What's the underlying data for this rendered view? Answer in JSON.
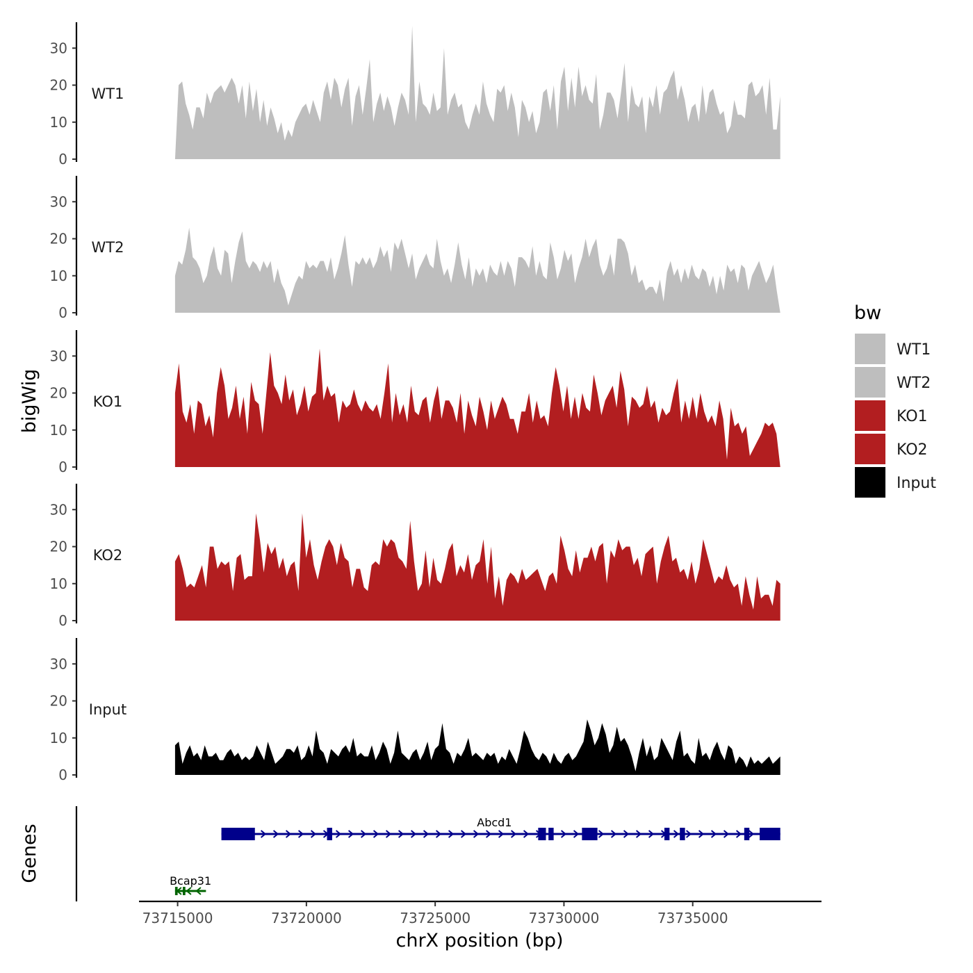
{
  "chart_data": {
    "type": "area",
    "title": "",
    "ylabel": "bigWig",
    "genes_label": "Genes",
    "xlabel": "chrX position (bp)",
    "xlim": [
      73713500,
      73740000
    ],
    "data_range": [
      73714900,
      73738400
    ],
    "ylim": [
      0,
      37
    ],
    "yticks": [
      0,
      10,
      20,
      30
    ],
    "xticks": [
      73715000,
      73720000,
      73725000,
      73730000,
      73735000
    ],
    "xtick_labels": [
      "73715000",
      "73720000",
      "73725000",
      "73730000",
      "73735000"
    ],
    "legend": {
      "title": "bw",
      "placement": "right",
      "entries": [
        {
          "label": "WT1",
          "color": "#bebebe"
        },
        {
          "label": "WT2",
          "color": "#bebebe"
        },
        {
          "label": "KO1",
          "color": "#b21e20"
        },
        {
          "label": "KO2",
          "color": "#b21e20"
        },
        {
          "label": "Input",
          "color": "#000000"
        }
      ]
    },
    "series": [
      {
        "name": "WT1",
        "color": "#bebebe",
        "values": [
          0,
          20,
          21,
          15,
          12,
          8,
          14,
          14,
          11,
          18,
          15,
          18,
          19,
          20,
          18,
          20,
          22,
          20,
          15,
          20,
          11,
          21,
          13,
          19,
          10,
          16,
          9,
          14,
          11,
          7,
          10,
          5,
          8,
          6,
          10,
          12,
          14,
          15,
          12,
          16,
          13,
          10,
          18,
          21,
          16,
          22,
          20,
          14,
          19,
          22,
          9,
          17,
          20,
          12,
          19,
          27,
          10,
          15,
          18,
          13,
          17,
          14,
          9,
          14,
          18,
          16,
          12,
          36,
          10,
          21,
          15,
          14,
          12,
          18,
          13,
          14,
          30,
          12,
          16,
          18,
          14,
          15,
          10,
          8,
          12,
          15,
          12,
          21,
          15,
          12,
          10,
          19,
          18,
          20,
          13,
          18,
          14,
          6,
          16,
          14,
          10,
          13,
          7,
          10,
          18,
          19,
          13,
          20,
          8,
          21,
          25,
          13,
          22,
          14,
          25,
          17,
          20,
          16,
          15,
          23,
          8,
          12,
          18,
          18,
          16,
          11,
          18,
          26,
          10,
          20,
          15,
          14,
          17,
          7,
          17,
          14,
          20,
          12,
          18,
          19,
          22,
          24,
          16,
          20,
          16,
          10,
          14,
          15,
          10,
          20,
          12,
          18,
          19,
          15,
          12,
          13,
          7,
          9,
          16,
          12,
          12,
          11,
          20,
          21,
          17,
          18,
          20,
          12,
          22,
          8,
          8,
          17
        ]
      },
      {
        "name": "WT2",
        "color": "#bebebe",
        "values": [
          10,
          14,
          13,
          17,
          23,
          15,
          14,
          12,
          8,
          10,
          15,
          18,
          12,
          10,
          17,
          16,
          8,
          14,
          19,
          22,
          14,
          12,
          14,
          13,
          11,
          14,
          12,
          14,
          8,
          12,
          8,
          6,
          2,
          5,
          8,
          10,
          9,
          14,
          12,
          13,
          12,
          14,
          14,
          11,
          15,
          9,
          12,
          16,
          21,
          13,
          7,
          14,
          13,
          15,
          13,
          15,
          12,
          14,
          18,
          15,
          17,
          11,
          19,
          17,
          20,
          16,
          12,
          16,
          9,
          12,
          14,
          16,
          13,
          12,
          20,
          14,
          10,
          12,
          8,
          13,
          19,
          13,
          9,
          15,
          7,
          12,
          10,
          12,
          8,
          13,
          11,
          10,
          14,
          10,
          14,
          12,
          7,
          15,
          15,
          14,
          12,
          18,
          10,
          14,
          10,
          9,
          19,
          15,
          9,
          12,
          17,
          14,
          16,
          8,
          12,
          15,
          20,
          15,
          18,
          20,
          13,
          10,
          12,
          16,
          10,
          20,
          20,
          19,
          16,
          10,
          13,
          8,
          9,
          6,
          7,
          7,
          5,
          9,
          3,
          11,
          14,
          10,
          12,
          8,
          12,
          9,
          13,
          10,
          9,
          12,
          11,
          7,
          10,
          5,
          10,
          6,
          13,
          11,
          12,
          8,
          13,
          12,
          6,
          10,
          12,
          14,
          11,
          8,
          10,
          13,
          6,
          0
        ]
      },
      {
        "name": "KO1",
        "color": "#b21e20",
        "values": [
          20,
          28,
          15,
          12,
          17,
          9,
          18,
          17,
          11,
          14,
          8,
          20,
          27,
          22,
          13,
          16,
          22,
          13,
          19,
          9,
          23,
          18,
          17,
          9,
          20,
          31,
          22,
          20,
          17,
          25,
          18,
          21,
          14,
          17,
          22,
          15,
          19,
          20,
          32,
          18,
          22,
          19,
          20,
          12,
          18,
          16,
          17,
          21,
          17,
          15,
          18,
          16,
          15,
          17,
          13,
          20,
          28,
          12,
          20,
          14,
          17,
          12,
          22,
          15,
          14,
          18,
          19,
          12,
          18,
          22,
          13,
          18,
          18,
          16,
          12,
          20,
          9,
          18,
          14,
          11,
          19,
          15,
          10,
          18,
          13,
          16,
          19,
          17,
          13,
          13,
          9,
          15,
          15,
          20,
          12,
          18,
          13,
          14,
          11,
          20,
          27,
          22,
          15,
          22,
          13,
          19,
          13,
          20,
          16,
          15,
          25,
          20,
          14,
          18,
          20,
          22,
          16,
          26,
          21,
          11,
          19,
          18,
          16,
          17,
          22,
          16,
          18,
          12,
          16,
          14,
          15,
          20,
          24,
          12,
          18,
          13,
          19,
          13,
          20,
          15,
          12,
          14,
          11,
          18,
          13,
          2,
          16,
          11,
          12,
          9,
          11,
          3,
          5,
          7,
          9,
          12,
          11,
          12,
          9,
          0
        ]
      },
      {
        "name": "KO2",
        "color": "#b21e20",
        "values": [
          16,
          18,
          14,
          9,
          10,
          9,
          12,
          15,
          9,
          20,
          20,
          14,
          16,
          15,
          16,
          8,
          17,
          18,
          11,
          12,
          12,
          29,
          22,
          13,
          21,
          18,
          20,
          14,
          17,
          12,
          15,
          16,
          8,
          29,
          17,
          22,
          15,
          11,
          16,
          20,
          22,
          20,
          15,
          21,
          17,
          16,
          9,
          14,
          14,
          9,
          8,
          15,
          16,
          15,
          22,
          20,
          22,
          21,
          17,
          16,
          14,
          27,
          16,
          8,
          10,
          19,
          9,
          17,
          11,
          10,
          14,
          19,
          21,
          12,
          15,
          13,
          18,
          11,
          15,
          16,
          22,
          10,
          20,
          6,
          12,
          4,
          11,
          13,
          12,
          10,
          14,
          11,
          12,
          13,
          14,
          11,
          8,
          12,
          13,
          10,
          23,
          19,
          14,
          12,
          19,
          13,
          17,
          17,
          20,
          16,
          20,
          21,
          10,
          19,
          17,
          22,
          19,
          20,
          20,
          15,
          17,
          12,
          18,
          19,
          20,
          10,
          16,
          20,
          23,
          16,
          17,
          13,
          14,
          11,
          16,
          10,
          14,
          22,
          18,
          14,
          10,
          12,
          11,
          15,
          11,
          9,
          10,
          4,
          12,
          7,
          3,
          12,
          6,
          7,
          7,
          4,
          11,
          10
        ]
      },
      {
        "name": "Input",
        "color": "#000000",
        "values": [
          8,
          9,
          3,
          6,
          8,
          5,
          6,
          4,
          8,
          5,
          5,
          6,
          4,
          4,
          6,
          7,
          5,
          6,
          4,
          5,
          4,
          5,
          8,
          6,
          4,
          9,
          6,
          3,
          4,
          5,
          7,
          7,
          6,
          8,
          4,
          5,
          8,
          5,
          12,
          7,
          6,
          3,
          7,
          6,
          5,
          7,
          8,
          6,
          10,
          5,
          6,
          5,
          5,
          8,
          4,
          6,
          9,
          7,
          3,
          6,
          12,
          6,
          5,
          4,
          6,
          7,
          4,
          6,
          9,
          4,
          7,
          8,
          14,
          7,
          6,
          3,
          6,
          5,
          7,
          10,
          5,
          6,
          5,
          4,
          6,
          5,
          6,
          3,
          5,
          4,
          7,
          5,
          3,
          7,
          12,
          10,
          7,
          5,
          4,
          6,
          5,
          3,
          6,
          4,
          3,
          5,
          6,
          4,
          5,
          7,
          9,
          15,
          12,
          8,
          10,
          14,
          11,
          6,
          8,
          13,
          9,
          10,
          8,
          5,
          1,
          6,
          10,
          5,
          8,
          4,
          5,
          10,
          8,
          6,
          4,
          9,
          12,
          5,
          6,
          4,
          3,
          10,
          5,
          6,
          4,
          7,
          9,
          6,
          4,
          8,
          7,
          3,
          5,
          4,
          2,
          5,
          3,
          4,
          3,
          4,
          5,
          3,
          4,
          5
        ]
      }
    ],
    "genes": [
      {
        "name": "Abcd1",
        "strand": "+",
        "start": 73716700,
        "end": 73738400,
        "color": "#00008b",
        "exons": [
          [
            73716700,
            73718000
          ],
          [
            73720800,
            73721000
          ],
          [
            73729000,
            73729300
          ],
          [
            73729400,
            73729600
          ],
          [
            73730700,
            73731300
          ],
          [
            73733900,
            73734100
          ],
          [
            73734500,
            73734700
          ],
          [
            73737000,
            73737200
          ],
          [
            73737600,
            73738400
          ]
        ]
      },
      {
        "name": "Bcap31",
        "strand": "-",
        "start": 73714900,
        "end": 73716100,
        "color": "#006400",
        "exons": [
          [
            73714900,
            73715000
          ],
          [
            73715200,
            73715300
          ]
        ]
      }
    ]
  }
}
